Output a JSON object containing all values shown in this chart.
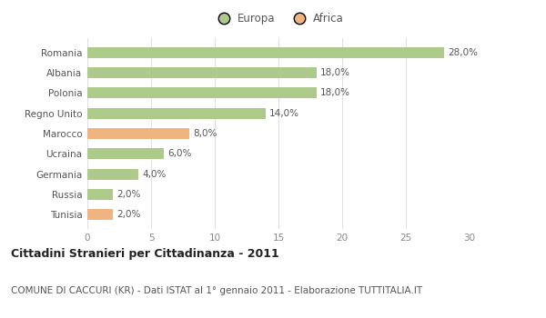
{
  "categories": [
    "Tunisia",
    "Russia",
    "Germania",
    "Ucraina",
    "Marocco",
    "Regno Unito",
    "Polonia",
    "Albania",
    "Romania"
  ],
  "values": [
    2.0,
    2.0,
    4.0,
    6.0,
    8.0,
    14.0,
    18.0,
    18.0,
    28.0
  ],
  "colors": [
    "#f0b482",
    "#aeca8a",
    "#aeca8a",
    "#aeca8a",
    "#f0b482",
    "#aeca8a",
    "#aeca8a",
    "#aeca8a",
    "#aeca8a"
  ],
  "labels": [
    "2,0%",
    "2,0%",
    "4,0%",
    "6,0%",
    "8,0%",
    "14,0%",
    "18,0%",
    "18,0%",
    "28,0%"
  ],
  "xlim": [
    0,
    30
  ],
  "xticks": [
    0,
    5,
    10,
    15,
    20,
    25,
    30
  ],
  "title": "Cittadini Stranieri per Cittadinanza - 2011",
  "subtitle": "COMUNE DI CACCURI (KR) - Dati ISTAT al 1° gennaio 2011 - Elaborazione TUTTITALIA.IT",
  "legend_europa_color": "#aeca8a",
  "legend_africa_color": "#f0b482",
  "bg_color": "#ffffff",
  "grid_color": "#e0e0e0",
  "title_fontsize": 9,
  "subtitle_fontsize": 7.5,
  "label_fontsize": 7.5,
  "tick_fontsize": 7.5,
  "legend_fontsize": 8.5
}
